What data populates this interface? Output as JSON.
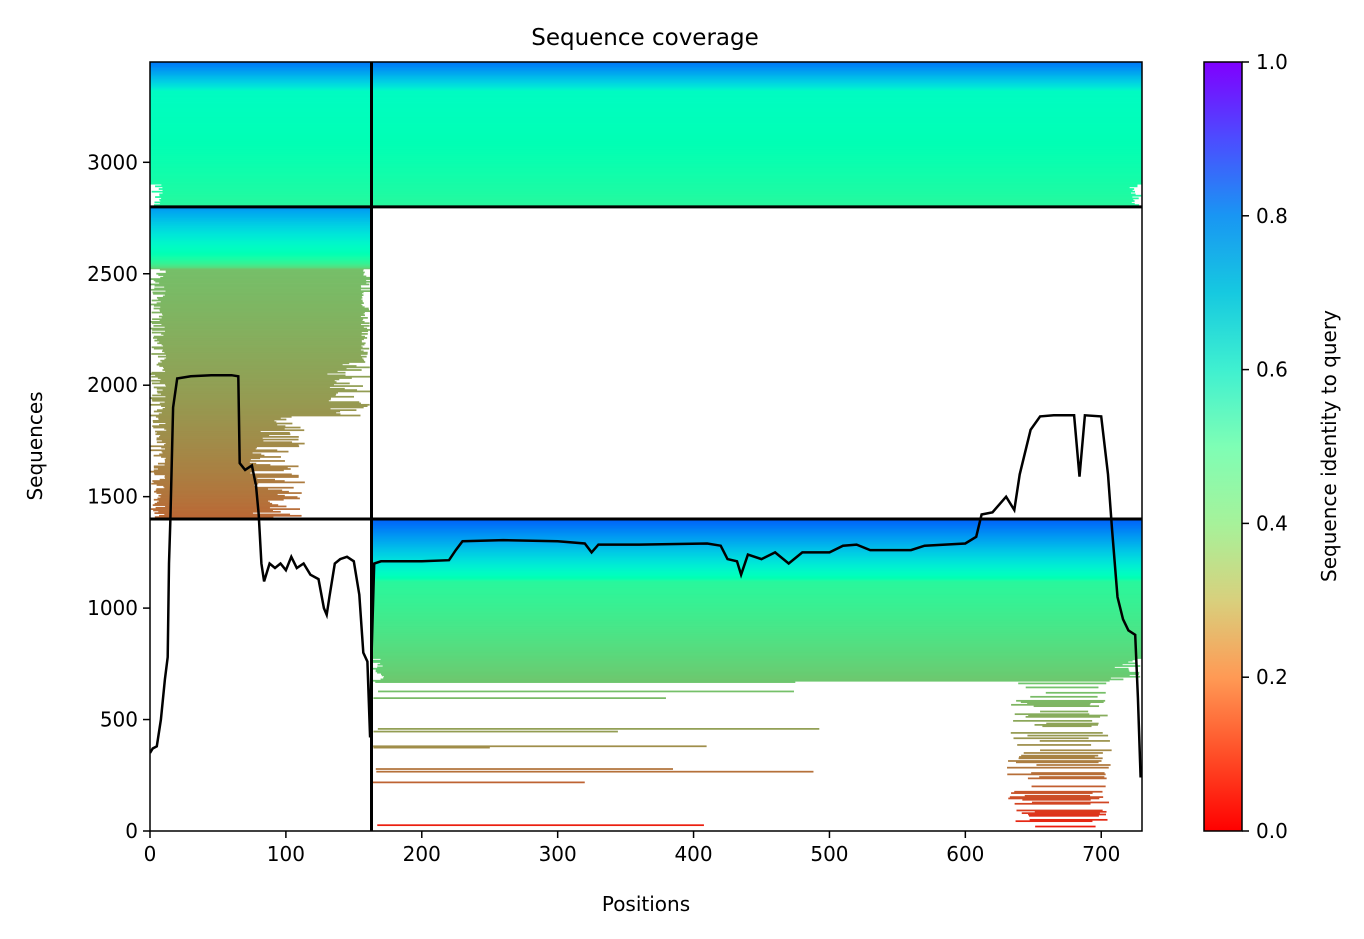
{
  "chart_data": {
    "type": "heatmap",
    "title": "Sequence coverage",
    "xlabel": "Positions",
    "ylabel": "Sequences",
    "xlim": [
      0,
      730
    ],
    "ylim": [
      0,
      3450
    ],
    "xticks": [
      0,
      100,
      200,
      300,
      400,
      500,
      600,
      700
    ],
    "yticks": [
      0,
      500,
      1000,
      1500,
      2000,
      2500,
      3000
    ],
    "grid": false,
    "colorbar": {
      "label": "Sequence identity to query",
      "colormap": "rainbow_r",
      "range": [
        0.0,
        1.0
      ],
      "ticks": [
        0.0,
        0.2,
        0.4,
        0.6,
        0.8,
        1.0
      ],
      "tick_labels": [
        "0.0",
        "0.2",
        "0.4",
        "0.6",
        "0.8",
        "1.0"
      ]
    },
    "chain_boundaries": {
      "x": [
        163
      ],
      "y": [
        1400,
        2800
      ]
    },
    "msa_blocks": [
      {
        "name": "paired-msa",
        "x_range": [
          0,
          730
        ],
        "y_range": [
          2800,
          3450
        ],
        "identity_top": 0.85,
        "identity_mid": 0.55,
        "identity_bottom": 0.42
      },
      {
        "name": "chain-1-msa",
        "x_range": [
          0,
          163
        ],
        "y_range": [
          1400,
          2800
        ],
        "identity_top": 0.8,
        "identity_mid": 0.27,
        "identity_bottom": 0.13
      },
      {
        "name": "chain-2-msa",
        "x_range": [
          163,
          730
        ],
        "y_range": [
          0,
          1400
        ],
        "identity_top": 0.88,
        "identity_mid": 0.42,
        "identity_bottom": 0.02
      }
    ],
    "coverage_series": {
      "name": "",
      "color": "#000000",
      "points": [
        [
          0,
          350
        ],
        [
          2,
          370
        ],
        [
          5,
          380
        ],
        [
          8,
          500
        ],
        [
          11,
          680
        ],
        [
          13,
          780
        ],
        [
          14,
          1200
        ],
        [
          15,
          1400
        ],
        [
          17,
          1900
        ],
        [
          20,
          2030
        ],
        [
          30,
          2040
        ],
        [
          45,
          2045
        ],
        [
          60,
          2045
        ],
        [
          65,
          2040
        ],
        [
          66,
          1650
        ],
        [
          70,
          1620
        ],
        [
          75,
          1640
        ],
        [
          78,
          1550
        ],
        [
          80,
          1420
        ],
        [
          82,
          1200
        ],
        [
          84,
          1120
        ],
        [
          88,
          1200
        ],
        [
          92,
          1180
        ],
        [
          96,
          1200
        ],
        [
          100,
          1170
        ],
        [
          104,
          1230
        ],
        [
          108,
          1180
        ],
        [
          113,
          1200
        ],
        [
          118,
          1150
        ],
        [
          124,
          1130
        ],
        [
          128,
          1000
        ],
        [
          130,
          970
        ],
        [
          132,
          1050
        ],
        [
          136,
          1200
        ],
        [
          140,
          1220
        ],
        [
          145,
          1230
        ],
        [
          150,
          1210
        ],
        [
          154,
          1060
        ],
        [
          157,
          800
        ],
        [
          160,
          760
        ],
        [
          162,
          420
        ],
        [
          163,
          780
        ],
        [
          165,
          1200
        ],
        [
          170,
          1210
        ],
        [
          180,
          1210
        ],
        [
          200,
          1210
        ],
        [
          220,
          1215
        ],
        [
          225,
          1260
        ],
        [
          230,
          1300
        ],
        [
          260,
          1305
        ],
        [
          300,
          1300
        ],
        [
          320,
          1290
        ],
        [
          325,
          1250
        ],
        [
          330,
          1285
        ],
        [
          360,
          1285
        ],
        [
          410,
          1290
        ],
        [
          420,
          1280
        ],
        [
          425,
          1220
        ],
        [
          432,
          1210
        ],
        [
          435,
          1150
        ],
        [
          440,
          1240
        ],
        [
          450,
          1220
        ],
        [
          460,
          1250
        ],
        [
          470,
          1200
        ],
        [
          480,
          1250
        ],
        [
          500,
          1250
        ],
        [
          510,
          1280
        ],
        [
          520,
          1285
        ],
        [
          530,
          1260
        ],
        [
          560,
          1260
        ],
        [
          570,
          1280
        ],
        [
          600,
          1290
        ],
        [
          608,
          1320
        ],
        [
          612,
          1420
        ],
        [
          620,
          1430
        ],
        [
          630,
          1500
        ],
        [
          636,
          1440
        ],
        [
          640,
          1600
        ],
        [
          648,
          1800
        ],
        [
          655,
          1860
        ],
        [
          665,
          1865
        ],
        [
          680,
          1865
        ],
        [
          684,
          1590
        ],
        [
          688,
          1865
        ],
        [
          700,
          1860
        ],
        [
          705,
          1600
        ],
        [
          708,
          1350
        ],
        [
          712,
          1050
        ],
        [
          716,
          950
        ],
        [
          720,
          900
        ],
        [
          725,
          880
        ],
        [
          727,
          600
        ],
        [
          729,
          240
        ]
      ]
    }
  }
}
